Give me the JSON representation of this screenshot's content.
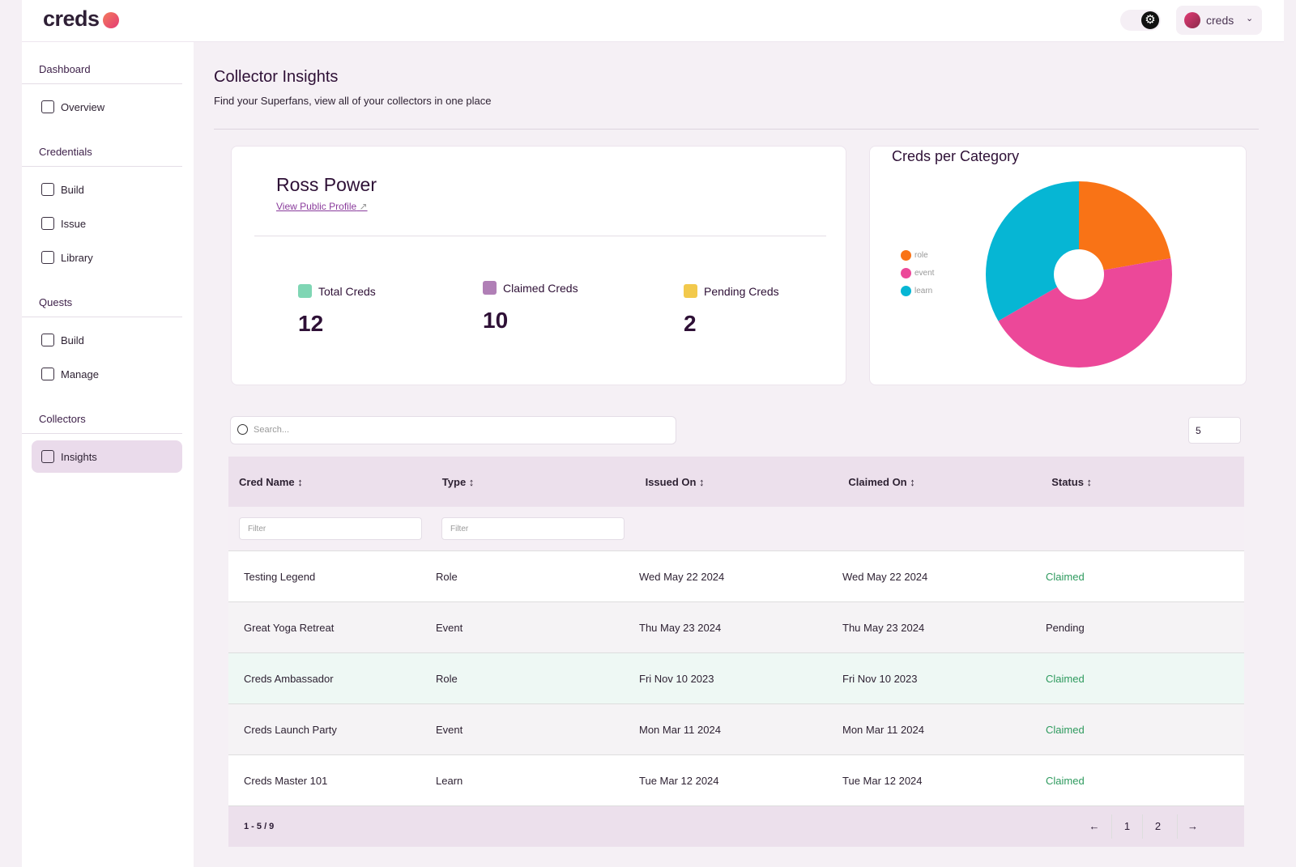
{
  "brand": {
    "logo": "creds"
  },
  "header": {
    "account": "creds"
  },
  "sidebar": {
    "sections": [
      {
        "title": "Dashboard",
        "items": [
          {
            "label": "Overview",
            "icon": "chart-icon"
          }
        ]
      },
      {
        "title": "Credentials",
        "items": [
          {
            "label": "Build",
            "icon": "build-icon"
          },
          {
            "label": "Issue",
            "icon": "plus-icon"
          },
          {
            "label": "Library",
            "icon": "grid-icon"
          }
        ]
      },
      {
        "title": "Quests",
        "items": [
          {
            "label": "Build",
            "icon": "build-icon"
          },
          {
            "label": "Manage",
            "icon": "sliders-icon"
          }
        ]
      },
      {
        "title": "Collectors",
        "items": [
          {
            "label": "Insights",
            "icon": "eye-icon",
            "active": true
          }
        ]
      }
    ]
  },
  "page": {
    "title": "Collector Insights",
    "subtitle": "Find your Superfans, view all of your collectors in one place"
  },
  "profile": {
    "name": "Ross Power",
    "link": "View Public Profile",
    "stats": [
      {
        "label": "Total Creds",
        "value": "12",
        "color": "#7fd6b4"
      },
      {
        "label": "Claimed Creds",
        "value": "10",
        "color": "#b07fb6"
      },
      {
        "label": "Pending Creds",
        "value": "2",
        "color": "#f2c94c"
      }
    ]
  },
  "chart_data": {
    "type": "pie",
    "title": "Creds per Category",
    "categories": [
      "role",
      "event",
      "learn"
    ],
    "values": [
      2,
      4,
      3
    ],
    "colors": [
      "#f97316",
      "#ec4899",
      "#06b6d4"
    ],
    "legend": "left"
  },
  "table": {
    "search_placeholder": "Search...",
    "page_size": "5",
    "filter_placeholder": "Filter",
    "columns": [
      "Cred Name ↕",
      "Type ↕",
      "Issued On ↕",
      "Claimed On ↕",
      "Status ↕"
    ],
    "rows": [
      [
        "Testing Legend",
        "Role",
        "Wed May 22 2024",
        "Wed May 22 2024",
        "Claimed"
      ],
      [
        "Great Yoga Retreat",
        "Event",
        "Thu May 23 2024",
        "Thu May 23 2024",
        "Pending"
      ],
      [
        "Creds Ambassador",
        "Role",
        "Fri Nov 10 2023",
        "Fri Nov 10 2023",
        "Claimed"
      ],
      [
        "Creds Launch Party",
        "Event",
        "Mon Mar 11 2024",
        "Mon Mar 11 2024",
        "Claimed"
      ],
      [
        "Creds Master 101",
        "Learn",
        "Tue Mar 12 2024",
        "Tue Mar 12 2024",
        "Claimed"
      ]
    ],
    "range": "1 - 5 / 9",
    "prev": "←",
    "pages": [
      "1",
      "2"
    ],
    "next": "→"
  }
}
